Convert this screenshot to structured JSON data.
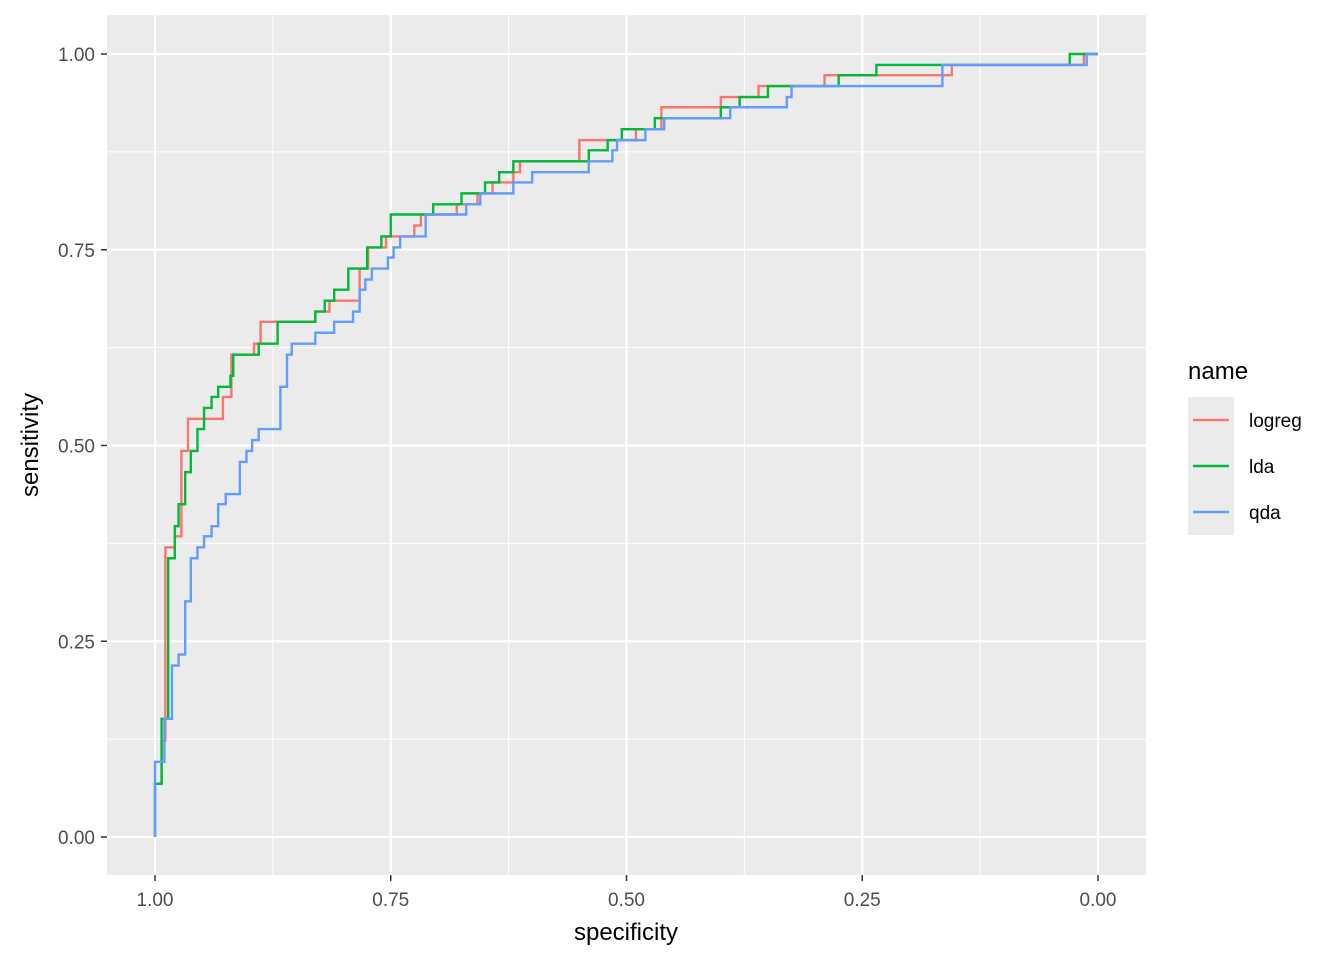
{
  "chart_data": {
    "type": "line",
    "step": true,
    "xlabel": "specificity",
    "ylabel": "sensitivity",
    "xlim": [
      1.0,
      0.0
    ],
    "ylim": [
      0.0,
      1.0
    ],
    "x_reversed": true,
    "x_ticks": [
      1.0,
      0.75,
      0.5,
      0.25,
      0.0
    ],
    "x_tick_labels": [
      "1.00",
      "0.75",
      "0.50",
      "0.25",
      "0.00"
    ],
    "y_ticks": [
      0.0,
      0.25,
      0.5,
      0.75,
      1.0
    ],
    "y_tick_labels": [
      "0.00",
      "0.25",
      "0.50",
      "0.75",
      "1.00"
    ],
    "grid": true,
    "panel_background": "#ebebeb",
    "grid_color": "#ffffff",
    "legend": {
      "title": "name",
      "placement": "right",
      "entries": [
        "logreg",
        "lda",
        "qda"
      ]
    },
    "series": [
      {
        "name": "logreg",
        "color": "#F8766D",
        "points": [
          [
            1.0,
            0.0
          ],
          [
            1.0,
            0.068
          ],
          [
            0.993,
            0.068
          ],
          [
            0.993,
            0.123
          ],
          [
            0.989,
            0.123
          ],
          [
            0.989,
            0.37
          ],
          [
            0.979,
            0.37
          ],
          [
            0.979,
            0.384
          ],
          [
            0.972,
            0.384
          ],
          [
            0.972,
            0.493
          ],
          [
            0.965,
            0.493
          ],
          [
            0.965,
            0.534
          ],
          [
            0.928,
            0.534
          ],
          [
            0.928,
            0.562
          ],
          [
            0.919,
            0.562
          ],
          [
            0.919,
            0.616
          ],
          [
            0.895,
            0.616
          ],
          [
            0.895,
            0.63
          ],
          [
            0.888,
            0.63
          ],
          [
            0.888,
            0.658
          ],
          [
            0.83,
            0.658
          ],
          [
            0.83,
            0.671
          ],
          [
            0.815,
            0.671
          ],
          [
            0.815,
            0.685
          ],
          [
            0.783,
            0.685
          ],
          [
            0.783,
            0.726
          ],
          [
            0.774,
            0.726
          ],
          [
            0.774,
            0.753
          ],
          [
            0.755,
            0.753
          ],
          [
            0.755,
            0.767
          ],
          [
            0.725,
            0.767
          ],
          [
            0.725,
            0.781
          ],
          [
            0.718,
            0.781
          ],
          [
            0.718,
            0.795
          ],
          [
            0.68,
            0.795
          ],
          [
            0.68,
            0.808
          ],
          [
            0.658,
            0.808
          ],
          [
            0.658,
            0.822
          ],
          [
            0.642,
            0.822
          ],
          [
            0.642,
            0.836
          ],
          [
            0.62,
            0.836
          ],
          [
            0.62,
            0.849
          ],
          [
            0.613,
            0.849
          ],
          [
            0.613,
            0.863
          ],
          [
            0.55,
            0.863
          ],
          [
            0.55,
            0.89
          ],
          [
            0.49,
            0.89
          ],
          [
            0.49,
            0.904
          ],
          [
            0.463,
            0.904
          ],
          [
            0.463,
            0.932
          ],
          [
            0.4,
            0.932
          ],
          [
            0.4,
            0.945
          ],
          [
            0.36,
            0.945
          ],
          [
            0.36,
            0.959
          ],
          [
            0.29,
            0.959
          ],
          [
            0.29,
            0.973
          ],
          [
            0.155,
            0.973
          ],
          [
            0.155,
            0.986
          ],
          [
            0.015,
            0.986
          ],
          [
            0.015,
            1.0
          ],
          [
            0.0,
            1.0
          ]
        ]
      },
      {
        "name": "lda",
        "color": "#00BA38",
        "points": [
          [
            1.0,
            0.0
          ],
          [
            1.0,
            0.068
          ],
          [
            0.993,
            0.068
          ],
          [
            0.993,
            0.151
          ],
          [
            0.986,
            0.151
          ],
          [
            0.986,
            0.356
          ],
          [
            0.979,
            0.356
          ],
          [
            0.979,
            0.397
          ],
          [
            0.975,
            0.397
          ],
          [
            0.975,
            0.425
          ],
          [
            0.968,
            0.425
          ],
          [
            0.968,
            0.466
          ],
          [
            0.962,
            0.466
          ],
          [
            0.962,
            0.493
          ],
          [
            0.955,
            0.493
          ],
          [
            0.955,
            0.521
          ],
          [
            0.948,
            0.521
          ],
          [
            0.948,
            0.548
          ],
          [
            0.94,
            0.548
          ],
          [
            0.94,
            0.562
          ],
          [
            0.933,
            0.562
          ],
          [
            0.933,
            0.575
          ],
          [
            0.92,
            0.575
          ],
          [
            0.92,
            0.589
          ],
          [
            0.917,
            0.589
          ],
          [
            0.917,
            0.616
          ],
          [
            0.89,
            0.616
          ],
          [
            0.89,
            0.63
          ],
          [
            0.87,
            0.63
          ],
          [
            0.87,
            0.658
          ],
          [
            0.83,
            0.658
          ],
          [
            0.83,
            0.671
          ],
          [
            0.82,
            0.671
          ],
          [
            0.82,
            0.685
          ],
          [
            0.81,
            0.685
          ],
          [
            0.81,
            0.699
          ],
          [
            0.795,
            0.699
          ],
          [
            0.795,
            0.726
          ],
          [
            0.775,
            0.726
          ],
          [
            0.775,
            0.753
          ],
          [
            0.76,
            0.753
          ],
          [
            0.76,
            0.767
          ],
          [
            0.75,
            0.767
          ],
          [
            0.75,
            0.795
          ],
          [
            0.705,
            0.795
          ],
          [
            0.705,
            0.808
          ],
          [
            0.675,
            0.808
          ],
          [
            0.675,
            0.822
          ],
          [
            0.65,
            0.822
          ],
          [
            0.65,
            0.836
          ],
          [
            0.635,
            0.836
          ],
          [
            0.635,
            0.849
          ],
          [
            0.62,
            0.849
          ],
          [
            0.62,
            0.863
          ],
          [
            0.54,
            0.863
          ],
          [
            0.54,
            0.877
          ],
          [
            0.52,
            0.877
          ],
          [
            0.52,
            0.89
          ],
          [
            0.505,
            0.89
          ],
          [
            0.505,
            0.904
          ],
          [
            0.47,
            0.904
          ],
          [
            0.47,
            0.918
          ],
          [
            0.4,
            0.918
          ],
          [
            0.4,
            0.932
          ],
          [
            0.38,
            0.932
          ],
          [
            0.38,
            0.945
          ],
          [
            0.35,
            0.945
          ],
          [
            0.35,
            0.959
          ],
          [
            0.275,
            0.959
          ],
          [
            0.275,
            0.973
          ],
          [
            0.235,
            0.973
          ],
          [
            0.235,
            0.986
          ],
          [
            0.03,
            0.986
          ],
          [
            0.03,
            1.0
          ],
          [
            0.0,
            1.0
          ]
        ]
      },
      {
        "name": "qda",
        "color": "#619CFF",
        "points": [
          [
            1.0,
            0.0
          ],
          [
            1.0,
            0.096
          ],
          [
            0.99,
            0.096
          ],
          [
            0.99,
            0.151
          ],
          [
            0.982,
            0.151
          ],
          [
            0.982,
            0.219
          ],
          [
            0.975,
            0.219
          ],
          [
            0.975,
            0.233
          ],
          [
            0.968,
            0.233
          ],
          [
            0.968,
            0.301
          ],
          [
            0.962,
            0.301
          ],
          [
            0.962,
            0.356
          ],
          [
            0.955,
            0.356
          ],
          [
            0.955,
            0.37
          ],
          [
            0.948,
            0.37
          ],
          [
            0.948,
            0.384
          ],
          [
            0.94,
            0.384
          ],
          [
            0.94,
            0.397
          ],
          [
            0.933,
            0.397
          ],
          [
            0.933,
            0.425
          ],
          [
            0.925,
            0.425
          ],
          [
            0.925,
            0.438
          ],
          [
            0.91,
            0.438
          ],
          [
            0.91,
            0.479
          ],
          [
            0.903,
            0.479
          ],
          [
            0.903,
            0.493
          ],
          [
            0.897,
            0.493
          ],
          [
            0.897,
            0.507
          ],
          [
            0.89,
            0.507
          ],
          [
            0.89,
            0.521
          ],
          [
            0.867,
            0.521
          ],
          [
            0.867,
            0.575
          ],
          [
            0.86,
            0.575
          ],
          [
            0.86,
            0.616
          ],
          [
            0.855,
            0.616
          ],
          [
            0.855,
            0.63
          ],
          [
            0.83,
            0.63
          ],
          [
            0.83,
            0.644
          ],
          [
            0.81,
            0.644
          ],
          [
            0.81,
            0.658
          ],
          [
            0.79,
            0.658
          ],
          [
            0.79,
            0.671
          ],
          [
            0.783,
            0.671
          ],
          [
            0.783,
            0.699
          ],
          [
            0.777,
            0.699
          ],
          [
            0.777,
            0.712
          ],
          [
            0.77,
            0.712
          ],
          [
            0.77,
            0.726
          ],
          [
            0.753,
            0.726
          ],
          [
            0.753,
            0.74
          ],
          [
            0.747,
            0.74
          ],
          [
            0.747,
            0.753
          ],
          [
            0.74,
            0.753
          ],
          [
            0.74,
            0.767
          ],
          [
            0.713,
            0.767
          ],
          [
            0.713,
            0.795
          ],
          [
            0.67,
            0.795
          ],
          [
            0.67,
            0.808
          ],
          [
            0.655,
            0.808
          ],
          [
            0.655,
            0.822
          ],
          [
            0.62,
            0.822
          ],
          [
            0.62,
            0.836
          ],
          [
            0.6,
            0.836
          ],
          [
            0.6,
            0.849
          ],
          [
            0.54,
            0.849
          ],
          [
            0.54,
            0.863
          ],
          [
            0.515,
            0.863
          ],
          [
            0.515,
            0.877
          ],
          [
            0.51,
            0.877
          ],
          [
            0.51,
            0.89
          ],
          [
            0.48,
            0.89
          ],
          [
            0.48,
            0.904
          ],
          [
            0.46,
            0.904
          ],
          [
            0.46,
            0.918
          ],
          [
            0.39,
            0.918
          ],
          [
            0.39,
            0.932
          ],
          [
            0.33,
            0.932
          ],
          [
            0.33,
            0.945
          ],
          [
            0.325,
            0.945
          ],
          [
            0.325,
            0.959
          ],
          [
            0.165,
            0.959
          ],
          [
            0.165,
            0.986
          ],
          [
            0.012,
            0.986
          ],
          [
            0.012,
            1.0
          ],
          [
            0.0,
            1.0
          ]
        ]
      }
    ]
  }
}
